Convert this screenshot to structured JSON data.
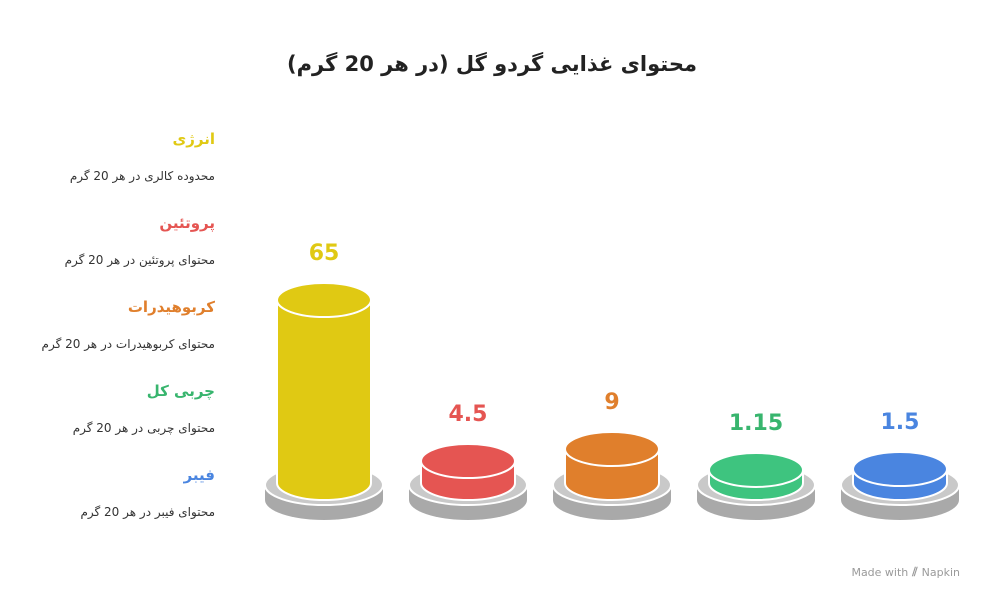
{
  "title": "محتوای غذایی گردو گل (در هر 20 گرم)",
  "footer": {
    "made_with": "Made with",
    "brand": "Napkin"
  },
  "legend": [
    {
      "name": "انرژی",
      "desc": "محدوده کالری در هر 20 گرم",
      "color": "#e0c913"
    },
    {
      "name": "پروتئین",
      "desc": "محتوای پروتئین در هر 20 گرم",
      "color": "#e55552"
    },
    {
      "name": "کربوهیدرات",
      "desc": "محتوای کربوهیدرات در هر 20 گرم",
      "color": "#e07f2c"
    },
    {
      "name": "چربی کل",
      "desc": "محتوای چربی در هر 20 گرم",
      "color": "#38b56e"
    },
    {
      "name": "فیبر",
      "desc": "محتوای فیبر در هر 20 گرم",
      "color": "#4a85e0"
    }
  ],
  "chart_data": {
    "type": "bar",
    "title": "محتوای غذایی گردو گل (در هر 20 گرم)",
    "categories": [
      "انرژی",
      "پروتئین",
      "کربوهیدرات",
      "چربی کل",
      "فیبر"
    ],
    "values": [
      65,
      4.5,
      9,
      1.15,
      1.5
    ],
    "labels": [
      "65",
      "4.5",
      "9",
      "1.15",
      "1.5"
    ],
    "colors": [
      "#e0c913",
      "#e55552",
      "#e07f2c",
      "#3ec47f",
      "#4a85e0"
    ],
    "label_colors": [
      "#e0c913",
      "#e55552",
      "#e07f2c",
      "#38b56e",
      "#4a85e0"
    ]
  }
}
